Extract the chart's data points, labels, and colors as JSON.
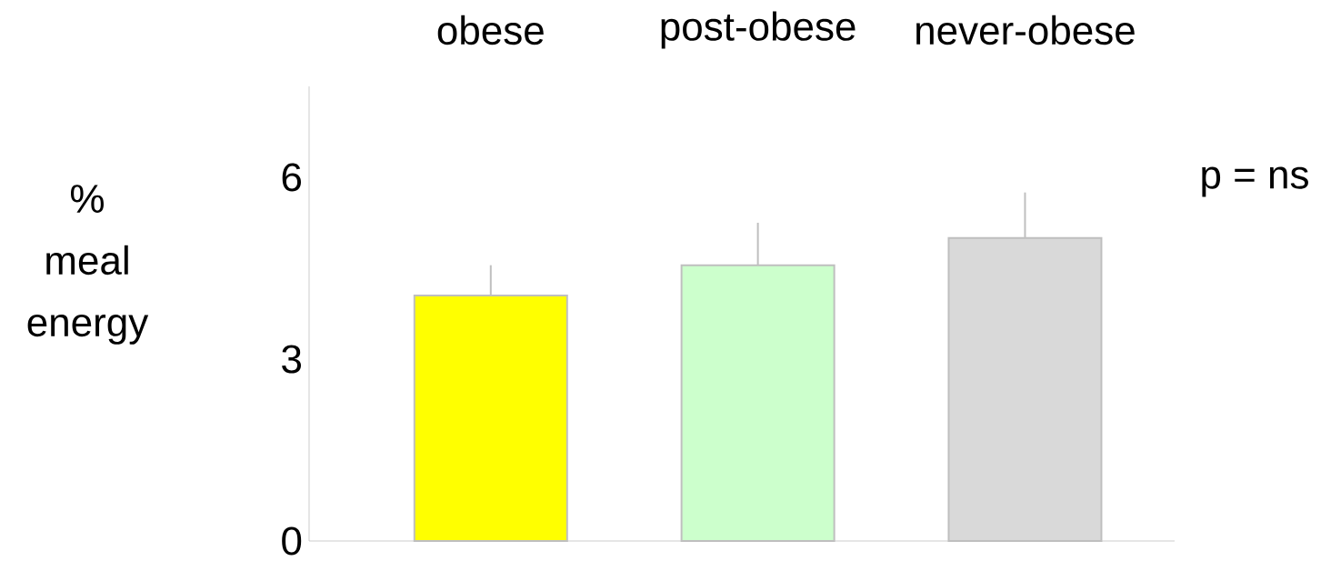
{
  "chart_data": {
    "type": "bar",
    "ylabel": "% meal energy",
    "categories": [
      "obese",
      "post-obese",
      "never-obese"
    ],
    "values": [
      4.05,
      4.55,
      5.0
    ],
    "errors": [
      [
        4.05,
        4.55
      ],
      [
        4.55,
        5.25
      ],
      [
        5.0,
        5.75
      ]
    ],
    "colors": [
      "#ffff00",
      "#ccffcc",
      "#d9d9d9"
    ],
    "ylim": [
      0,
      7.5
    ],
    "yticks": [
      0,
      3,
      6
    ],
    "annotations": [
      "p = ns"
    ]
  }
}
